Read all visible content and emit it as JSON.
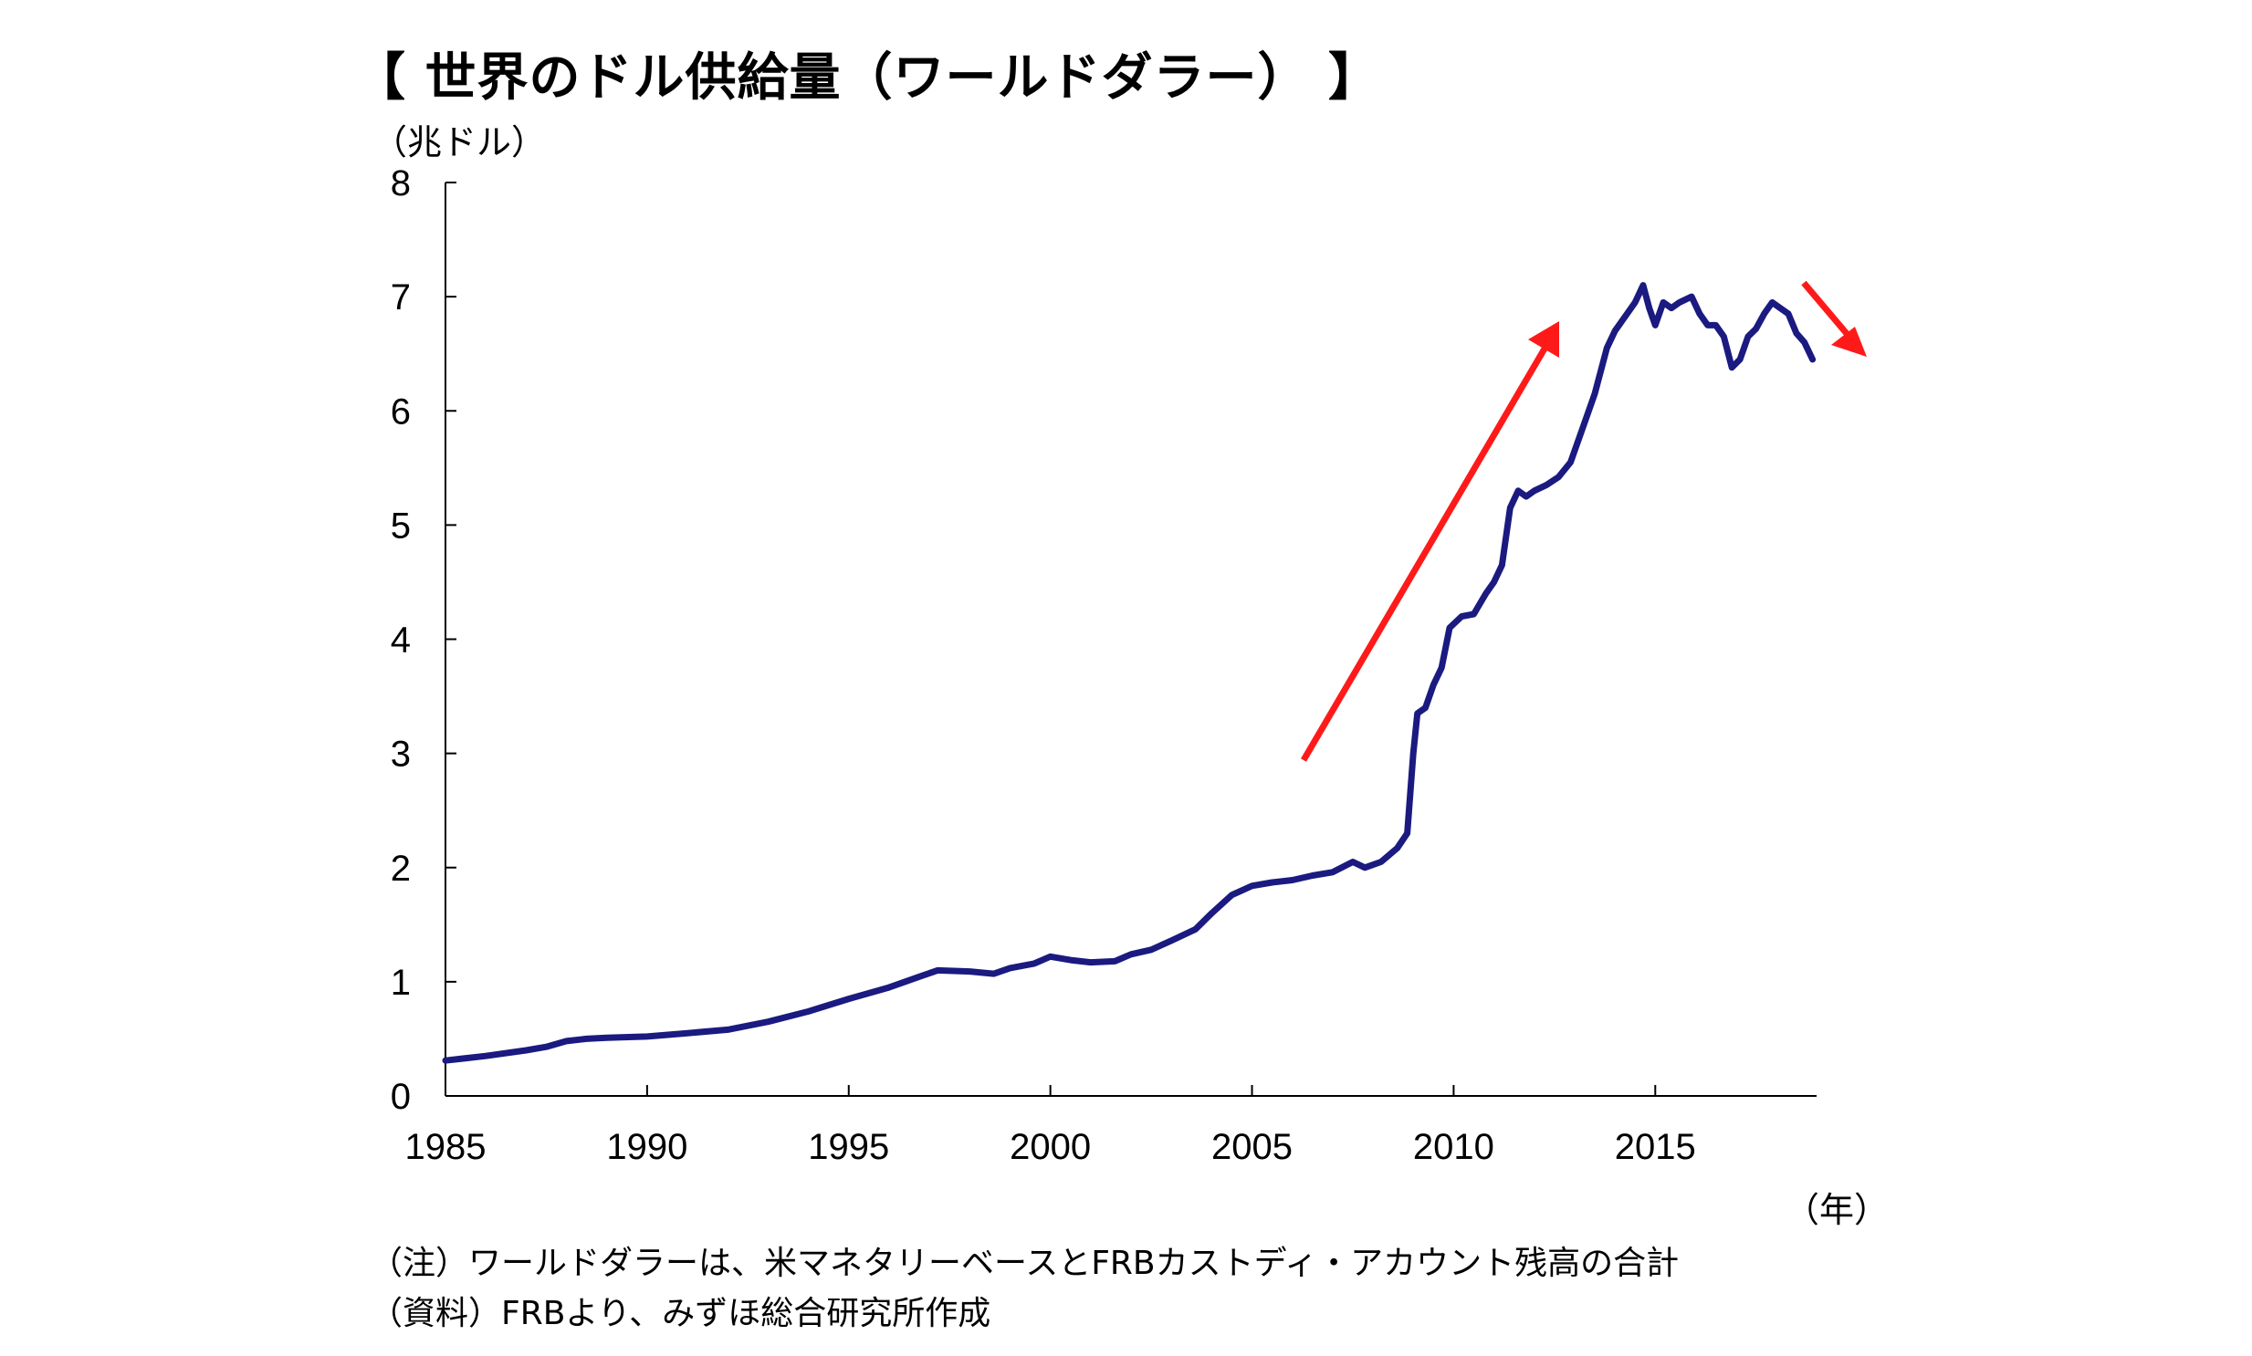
{
  "title": "【 世界のドル供給量（ワールドダラー） 】",
  "y_unit": "（兆ドル）",
  "x_unit": "（年）",
  "note": "（注）ワールドダラーは、米マネタリーベースとFRBカストディ・アカウント残高の合計",
  "source": "（資料）FRBより、みずほ総合研究所作成",
  "colors": {
    "line": "#1a1a80",
    "arrow": "#ff1a1a",
    "axis": "#000000"
  },
  "chart_data": {
    "type": "line",
    "xlim": [
      1985,
      2019
    ],
    "ylim": [
      0,
      8
    ],
    "x_ticks": [
      1985,
      1990,
      1995,
      2000,
      2005,
      2010,
      2015
    ],
    "y_ticks": [
      0,
      1,
      2,
      3,
      4,
      5,
      6,
      7,
      8
    ],
    "grid": false,
    "series": [
      {
        "points": [
          [
            1985.0,
            0.31
          ],
          [
            1986.0,
            0.35
          ],
          [
            1987.0,
            0.4
          ],
          [
            1987.5,
            0.43
          ],
          [
            1988.0,
            0.48
          ],
          [
            1988.5,
            0.5
          ],
          [
            1989.0,
            0.51
          ],
          [
            1990.0,
            0.52
          ],
          [
            1991.0,
            0.55
          ],
          [
            1992.0,
            0.58
          ],
          [
            1993.0,
            0.65
          ],
          [
            1994.0,
            0.74
          ],
          [
            1995.0,
            0.85
          ],
          [
            1996.0,
            0.95
          ],
          [
            1996.8,
            1.05
          ],
          [
            1997.2,
            1.1
          ],
          [
            1998.0,
            1.09
          ],
          [
            1998.6,
            1.07
          ],
          [
            1999.0,
            1.12
          ],
          [
            1999.6,
            1.16
          ],
          [
            2000.0,
            1.22
          ],
          [
            2000.5,
            1.19
          ],
          [
            2001.0,
            1.17
          ],
          [
            2001.6,
            1.18
          ],
          [
            2002.0,
            1.24
          ],
          [
            2002.5,
            1.28
          ],
          [
            2003.0,
            1.36
          ],
          [
            2003.6,
            1.46
          ],
          [
            2004.0,
            1.6
          ],
          [
            2004.5,
            1.76
          ],
          [
            2005.0,
            1.84
          ],
          [
            2005.5,
            1.87
          ],
          [
            2006.0,
            1.89
          ],
          [
            2006.5,
            1.93
          ],
          [
            2007.0,
            1.96
          ],
          [
            2007.5,
            2.05
          ],
          [
            2007.8,
            2.0
          ],
          [
            2008.2,
            2.05
          ],
          [
            2008.6,
            2.17
          ],
          [
            2008.85,
            2.3
          ],
          [
            2009.0,
            3.0
          ],
          [
            2009.1,
            3.35
          ],
          [
            2009.3,
            3.4
          ],
          [
            2009.5,
            3.6
          ],
          [
            2009.7,
            3.75
          ],
          [
            2009.9,
            4.1
          ],
          [
            2010.2,
            4.2
          ],
          [
            2010.5,
            4.22
          ],
          [
            2010.8,
            4.4
          ],
          [
            2011.0,
            4.5
          ],
          [
            2011.2,
            4.65
          ],
          [
            2011.4,
            5.15
          ],
          [
            2011.6,
            5.3
          ],
          [
            2011.8,
            5.25
          ],
          [
            2012.0,
            5.3
          ],
          [
            2012.3,
            5.35
          ],
          [
            2012.6,
            5.42
          ],
          [
            2012.9,
            5.55
          ],
          [
            2013.2,
            5.85
          ],
          [
            2013.5,
            6.15
          ],
          [
            2013.8,
            6.55
          ],
          [
            2014.0,
            6.7
          ],
          [
            2014.3,
            6.85
          ],
          [
            2014.5,
            6.95
          ],
          [
            2014.7,
            7.1
          ],
          [
            2014.85,
            6.9
          ],
          [
            2015.0,
            6.75
          ],
          [
            2015.2,
            6.95
          ],
          [
            2015.4,
            6.9
          ],
          [
            2015.6,
            6.95
          ],
          [
            2015.9,
            7.0
          ],
          [
            2016.1,
            6.85
          ],
          [
            2016.3,
            6.75
          ],
          [
            2016.5,
            6.75
          ],
          [
            2016.7,
            6.65
          ],
          [
            2016.9,
            6.38
          ],
          [
            2017.1,
            6.45
          ],
          [
            2017.3,
            6.65
          ],
          [
            2017.5,
            6.72
          ],
          [
            2017.7,
            6.85
          ],
          [
            2017.9,
            6.95
          ],
          [
            2018.1,
            6.9
          ],
          [
            2018.3,
            6.85
          ],
          [
            2018.5,
            6.68
          ],
          [
            2018.7,
            6.6
          ],
          [
            2018.9,
            6.45
          ]
        ]
      }
    ]
  }
}
